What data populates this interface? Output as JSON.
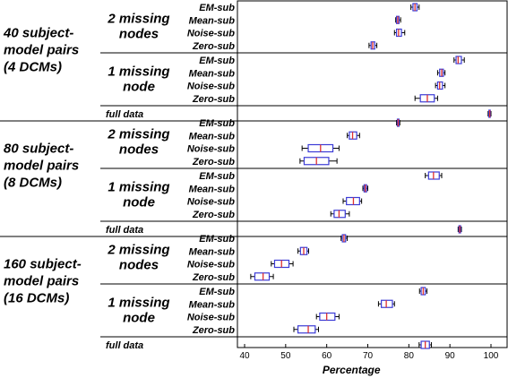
{
  "chart_data": {
    "type": "boxplot",
    "xlabel": "Percentage",
    "xlim": [
      38,
      101
    ],
    "xticks": [
      40,
      50,
      60,
      70,
      80,
      90,
      100
    ],
    "colors": {
      "box": "#3b3bd6",
      "median": "#e03030",
      "whisker": "#000000"
    },
    "groups": [
      {
        "label_lines": [
          "40 subject-",
          "model pairs",
          "(4 DCMs)"
        ],
        "sections": [
          {
            "label_lines": [
              "2 missing",
              "nodes"
            ],
            "rows": [
              {
                "name": "EM-sub",
                "stats": [
                  80.5,
                  81,
                  81.5,
                  82,
                  82.5
                ]
              },
              {
                "name": "Mean-sub",
                "stats": [
                  76.8,
                  77,
                  77.3,
                  77.6,
                  78
                ]
              },
              {
                "name": "Noise-sub",
                "stats": [
                  76.5,
                  77,
                  77.5,
                  78.2,
                  79
                ]
              },
              {
                "name": "Zero-sub",
                "stats": [
                  70.3,
                  70.8,
                  71.2,
                  71.7,
                  72.2
                ]
              }
            ]
          },
          {
            "label_lines": [
              "1 missing",
              "node"
            ],
            "rows": [
              {
                "name": "EM-sub",
                "stats": [
                  91,
                  91.5,
                  92,
                  92.8,
                  93.5
                ]
              },
              {
                "name": "Mean-sub",
                "stats": [
                  87,
                  87.5,
                  88,
                  88.4,
                  88.8
                ]
              },
              {
                "name": "Noise-sub",
                "stats": [
                  86.5,
                  87,
                  87.5,
                  88.2,
                  88.8
                ]
              },
              {
                "name": "Zero-sub",
                "stats": [
                  81.5,
                  82.8,
                  84.5,
                  86.2,
                  87
                ]
              }
            ]
          }
        ],
        "full_data": {
          "label": "full data",
          "stats": [
            99.3,
            99.5,
            99.7,
            99.8,
            100
          ]
        }
      },
      {
        "label_lines": [
          "80 subject-",
          "model pairs",
          "(8 DCMs)"
        ],
        "sections": [
          {
            "label_lines": [
              "2 missing",
              "nodes"
            ],
            "rows": [
              {
                "name": "EM-sub",
                "stats": [
                  77,
                  77.2,
                  77.4,
                  77.6,
                  77.8
                ]
              },
              {
                "name": "Mean-sub",
                "stats": [
                  65,
                  65.5,
                  66.3,
                  67.3,
                  68
                ]
              },
              {
                "name": "Noise-sub",
                "stats": [
                  54,
                  55.5,
                  58.5,
                  61.5,
                  63
                ]
              },
              {
                "name": "Zero-sub",
                "stats": [
                  53.5,
                  54.5,
                  57.5,
                  60.5,
                  62.5
                ]
              }
            ]
          },
          {
            "label_lines": [
              "1 missing",
              "node"
            ],
            "rows": [
              {
                "name": "EM-sub",
                "stats": [
                  84,
                  84.8,
                  86,
                  87.4,
                  88
                ]
              },
              {
                "name": "Mean-sub",
                "stats": [
                  68.8,
                  69.1,
                  69.4,
                  69.7,
                  70
                ]
              },
              {
                "name": "Noise-sub",
                "stats": [
                  64,
                  64.8,
                  66.5,
                  68,
                  68.5
                ]
              },
              {
                "name": "Zero-sub",
                "stats": [
                  61,
                  61.8,
                  63,
                  64.5,
                  65.5
                ]
              }
            ]
          }
        ],
        "full_data": {
          "label": "full data",
          "stats": [
            92,
            92.2,
            92.4,
            92.6,
            92.8
          ]
        }
      },
      {
        "label_lines": [
          "160 subject-",
          "model pairs",
          "(16 DCMs)"
        ],
        "sections": [
          {
            "label_lines": [
              "2 missing",
              "nodes"
            ],
            "rows": [
              {
                "name": "EM-sub",
                "stats": [
                  63.5,
                  63.8,
                  64.2,
                  64.6,
                  65
                ]
              },
              {
                "name": "Mean-sub",
                "stats": [
                  53,
                  53.6,
                  54.4,
                  55.2,
                  55.6
                ]
              },
              {
                "name": "Noise-sub",
                "stats": [
                  46.5,
                  47.3,
                  49,
                  50.8,
                  51.8
                ]
              },
              {
                "name": "Zero-sub",
                "stats": [
                  41.5,
                  42.5,
                  44.5,
                  46,
                  47
                ]
              }
            ]
          },
          {
            "label_lines": [
              "1 missing",
              "node"
            ],
            "rows": [
              {
                "name": "EM-sub",
                "stats": [
                  82.6,
                  83,
                  83.5,
                  84,
                  84.4
                ]
              },
              {
                "name": "Mean-sub",
                "stats": [
                  72.6,
                  73.3,
                  74.5,
                  76,
                  76.5
                ]
              },
              {
                "name": "Noise-sub",
                "stats": [
                  57.5,
                  58.3,
                  60,
                  62,
                  63
                ]
              },
              {
                "name": "Zero-sub",
                "stats": [
                  52,
                  53,
                  55.5,
                  57.2,
                  58
                ]
              }
            ]
          }
        ],
        "full_data": {
          "label": "full data",
          "stats": [
            82.5,
            83,
            84,
            85,
            85.5
          ]
        }
      }
    ]
  }
}
